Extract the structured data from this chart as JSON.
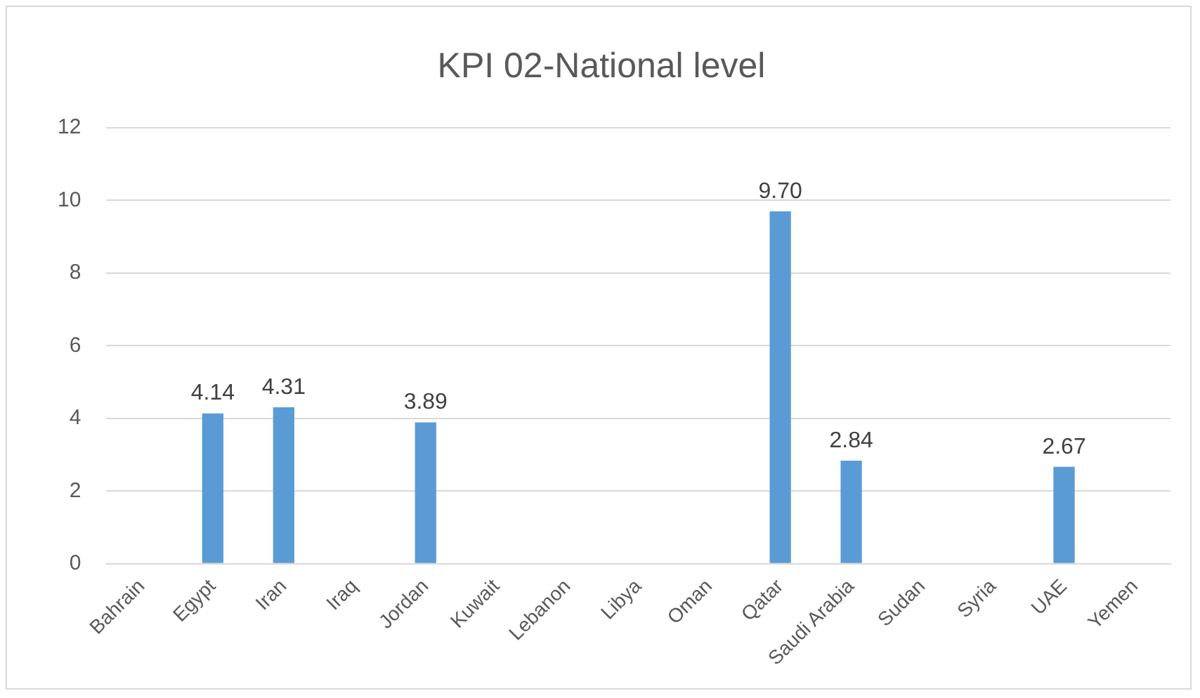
{
  "chart_data": {
    "type": "bar",
    "title": "KPI 02-National level",
    "categories": [
      "Bahrain",
      "Egypt",
      "Iran",
      "Iraq",
      "Jordan",
      "Kuwait",
      "Lebanon",
      "Libya",
      "Oman",
      "Qatar",
      "Saudi Arabia",
      "Sudan",
      "Syria",
      "UAE",
      "Yemen"
    ],
    "values": [
      null,
      4.14,
      4.31,
      null,
      3.89,
      null,
      null,
      null,
      null,
      9.7,
      2.84,
      null,
      null,
      2.67,
      null
    ],
    "value_labels": [
      null,
      "4.14",
      "4.31",
      null,
      "3.89",
      null,
      null,
      null,
      null,
      "9.70",
      "2.84",
      null,
      null,
      "2.67",
      null
    ],
    "color": "#5b9bd5",
    "ylim": [
      0,
      12
    ],
    "yticks": [
      0,
      2,
      4,
      6,
      8,
      10,
      12
    ],
    "grid": "y",
    "legend": false
  }
}
